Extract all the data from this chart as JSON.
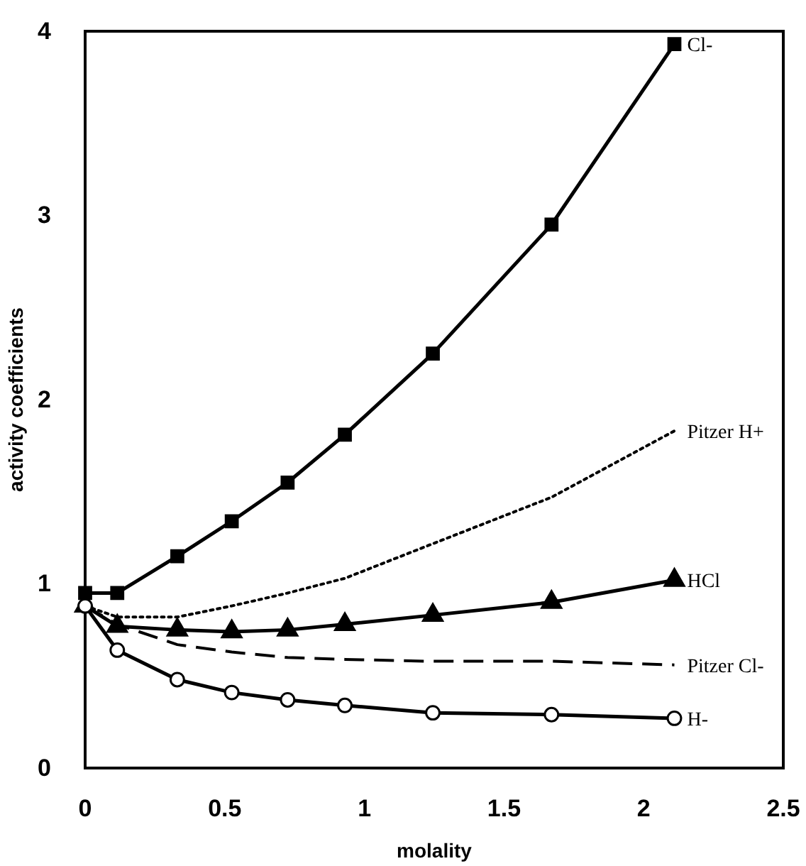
{
  "chart_data": {
    "type": "line",
    "xlabel": "molality",
    "ylabel": "activity coefficients",
    "xlim": [
      0,
      2.5
    ],
    "ylim": [
      0,
      4
    ],
    "xticks": [
      0,
      0.5,
      1,
      1.5,
      2,
      2.5
    ],
    "yticks": [
      0,
      1,
      2,
      3,
      4
    ],
    "grid": false,
    "series": [
      {
        "name": "Cl-",
        "color": "#000000",
        "marker": "square",
        "line_style": "solid",
        "x": [
          0,
          0.115,
          0.33,
          0.525,
          0.725,
          0.93,
          1.245,
          1.67,
          2.11
        ],
        "values": [
          0.95,
          0.95,
          1.15,
          1.34,
          1.55,
          1.81,
          2.25,
          2.95,
          3.93
        ]
      },
      {
        "name": "Pitzer H+",
        "color": "#000000",
        "marker": "none",
        "line_style": "dotted",
        "x": [
          0,
          0.115,
          0.2,
          0.33,
          0.525,
          0.725,
          0.93,
          1.215,
          1.67,
          2.11
        ],
        "values": [
          0.88,
          0.82,
          0.82,
          0.82,
          0.88,
          0.95,
          1.03,
          1.2,
          1.47,
          1.83
        ]
      },
      {
        "name": "HCl",
        "color": "#000000",
        "marker": "triangle",
        "line_style": "solid",
        "x": [
          0,
          0.115,
          0.33,
          0.525,
          0.725,
          0.93,
          1.245,
          1.67,
          2.11
        ],
        "values": [
          0.88,
          0.77,
          0.75,
          0.74,
          0.75,
          0.78,
          0.83,
          0.9,
          1.02
        ]
      },
      {
        "name": "Pitzer Cl-",
        "color": "#000000",
        "marker": "none",
        "line_style": "dashed",
        "x": [
          0,
          0.115,
          0.33,
          0.525,
          0.725,
          0.93,
          1.215,
          1.67,
          2.11
        ],
        "values": [
          0.88,
          0.78,
          0.67,
          0.63,
          0.6,
          0.59,
          0.58,
          0.58,
          0.56
        ]
      },
      {
        "name": "H-",
        "color": "#000000",
        "marker": "circle",
        "line_style": "solid",
        "x": [
          0,
          0.115,
          0.33,
          0.525,
          0.725,
          0.93,
          1.245,
          1.67,
          2.11
        ],
        "values": [
          0.88,
          0.64,
          0.48,
          0.41,
          0.37,
          0.34,
          0.3,
          0.29,
          0.27
        ]
      }
    ]
  }
}
